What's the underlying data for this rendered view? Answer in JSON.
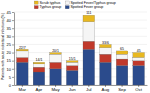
{
  "chart_data": {
    "type": "bar",
    "stacked": true,
    "y_label": "Patients with acute rickettsial infections (%)",
    "categories": [
      "Mar",
      "Apr",
      "May",
      "Jun",
      "Jul",
      "Aug",
      "Sep",
      "Oct"
    ],
    "series": [
      {
        "name": "Spotted Fever group",
        "color": "#2b4b8c",
        "values": [
          14,
          8,
          10,
          9,
          22,
          14,
          12,
          12
        ]
      },
      {
        "name": "Typhus group",
        "color": "#c0392b",
        "values": [
          3,
          3,
          4,
          3,
          5,
          5,
          4,
          3
        ]
      },
      {
        "name": "Spotted Fever/Typhus group",
        "color": "#f5f5f5",
        "values": [
          4,
          2,
          5,
          2,
          12,
          4,
          3,
          2
        ]
      },
      {
        "name": "Scrub typhus",
        "color": "#e8b820",
        "values": [
          1,
          1,
          1,
          1,
          4,
          2,
          2,
          3
        ]
      }
    ],
    "annotations": [
      "22/7",
      "14/1",
      "20/1",
      "15/1",
      "111",
      "33/6",
      "65",
      "45"
    ],
    "ylim": [
      0,
      45
    ],
    "yticks": [
      0,
      5,
      10,
      15,
      20,
      25,
      30,
      35,
      40,
      45
    ],
    "grid": true,
    "legend": "top"
  }
}
